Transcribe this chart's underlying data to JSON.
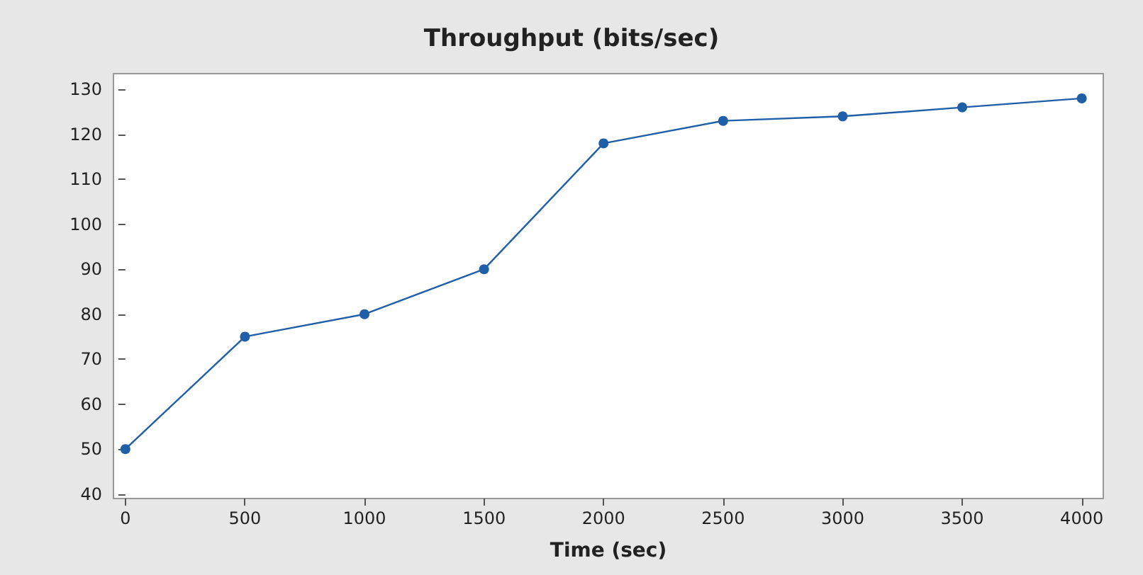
{
  "chart_data": {
    "type": "line",
    "title": "Throughput (bits/sec)",
    "xlabel": "Time (sec)",
    "x": [
      0,
      500,
      1000,
      1500,
      2000,
      2500,
      3000,
      3500,
      4000
    ],
    "series": [
      {
        "color": "#1f5fa8",
        "values": [
          50,
          75,
          80,
          90,
          118,
          123,
          124,
          126,
          128
        ]
      }
    ],
    "xlim": [
      -50,
      4090
    ],
    "xticks": [
      0,
      500,
      1000,
      1500,
      2000,
      2500,
      3000,
      3500,
      4000
    ],
    "ylim": [
      39,
      133.5
    ],
    "yticks": [
      40,
      50,
      60,
      70,
      80,
      90,
      100,
      110,
      120,
      130
    ],
    "marker": "circle",
    "line_style": "solid"
  }
}
